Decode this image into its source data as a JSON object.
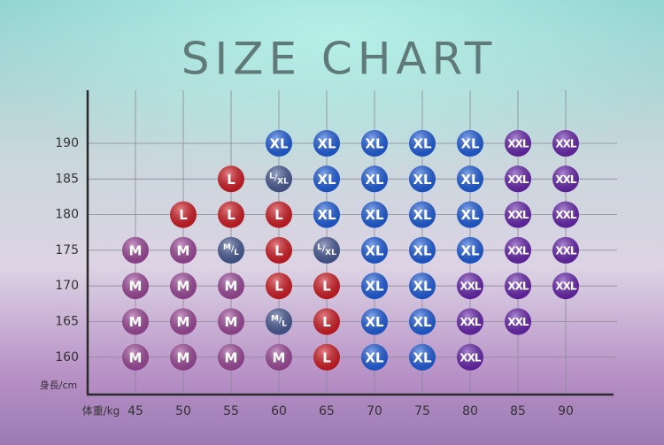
{
  "title": "SIZE CHART",
  "y_axis_label": "身長/cm",
  "x_axis_label": "体重/kg",
  "weights": [
    45,
    50,
    55,
    60,
    65,
    70,
    75,
    80,
    85,
    90
  ],
  "heights": [
    190,
    185,
    180,
    175,
    170,
    165,
    160
  ],
  "rows": [
    [
      null,
      null,
      null,
      "XL",
      "XL",
      "XL",
      "XL",
      "XL",
      "XXL",
      "XXL"
    ],
    [
      null,
      null,
      "L",
      "L/XL",
      "XL",
      "XL",
      "XL",
      "XL",
      "XXL",
      "XXL"
    ],
    [
      null,
      "L",
      "L",
      "L",
      "XL",
      "XL",
      "XL",
      "XL",
      "XXL",
      "XXL"
    ],
    [
      "M",
      "M",
      "M/L",
      "L",
      "L/XL",
      "XL",
      "XL",
      "XL",
      "XXL",
      "XXL"
    ],
    [
      "M",
      "M",
      "M",
      "L",
      "L",
      "XL",
      "XL",
      "XXL",
      "XXL",
      "XXL"
    ],
    [
      "M",
      "M",
      "M",
      "M/L",
      "L",
      "XL",
      "XL",
      "XXL",
      "XXL",
      null
    ],
    [
      "M",
      "M",
      "M",
      "M",
      "L",
      "XL",
      "XL",
      "XXL",
      null,
      null
    ]
  ],
  "size_colors": {
    "M": "#a04a9c",
    "L": "#d41c24",
    "XL": "#1f5fe0",
    "XXL": "#6a26b0",
    "M/L": "#4a5c98",
    "L/XL": "#4a5c98"
  }
}
